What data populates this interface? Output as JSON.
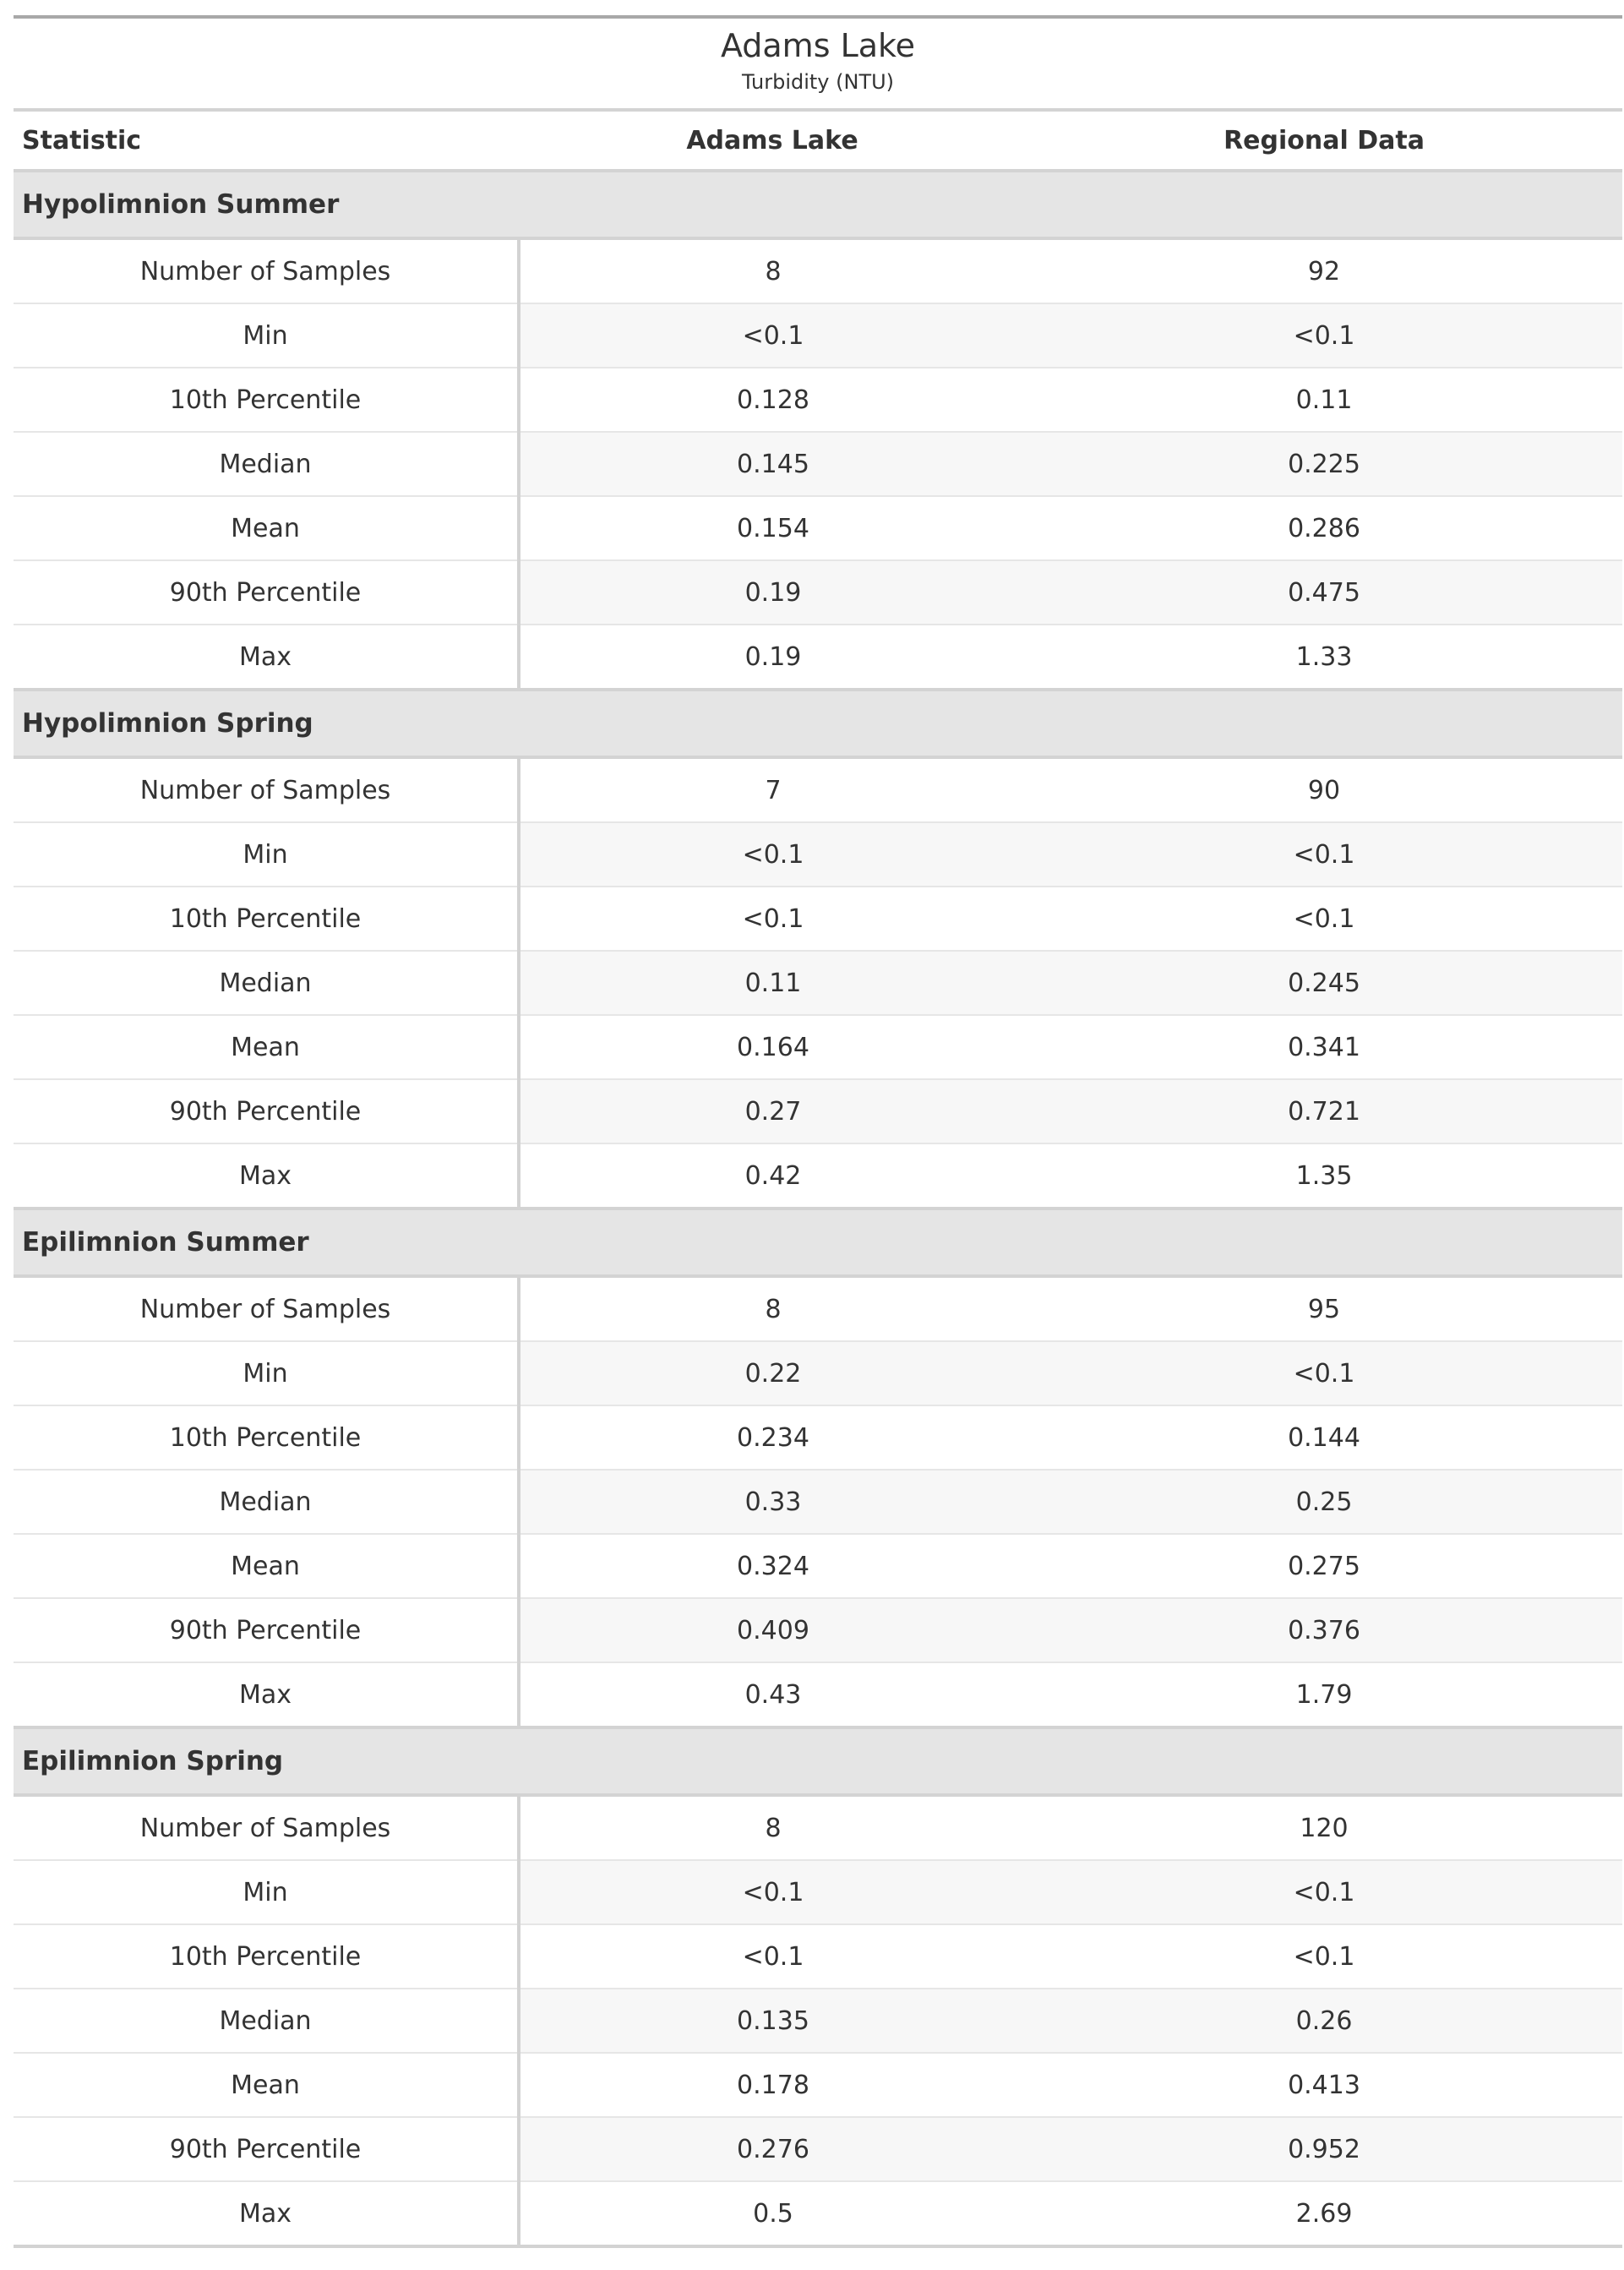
{
  "table": {
    "title": "Adams Lake",
    "subtitle": "Turbidity (NTU)",
    "columns": [
      "Statistic",
      "Adams Lake",
      "Regional Data"
    ],
    "groups": [
      {
        "name": "Hypolimnion Summer",
        "rows": [
          {
            "stat": "Number of Samples",
            "lake": "8",
            "regional": "92"
          },
          {
            "stat": "Min",
            "lake": "<0.1",
            "regional": "<0.1"
          },
          {
            "stat": "10th Percentile",
            "lake": "0.128",
            "regional": "0.11"
          },
          {
            "stat": "Median",
            "lake": "0.145",
            "regional": "0.225"
          },
          {
            "stat": "Mean",
            "lake": "0.154",
            "regional": "0.286"
          },
          {
            "stat": "90th Percentile",
            "lake": "0.19",
            "regional": "0.475"
          },
          {
            "stat": "Max",
            "lake": "0.19",
            "regional": "1.33"
          }
        ]
      },
      {
        "name": "Hypolimnion Spring",
        "rows": [
          {
            "stat": "Number of Samples",
            "lake": "7",
            "regional": "90"
          },
          {
            "stat": "Min",
            "lake": "<0.1",
            "regional": "<0.1"
          },
          {
            "stat": "10th Percentile",
            "lake": "<0.1",
            "regional": "<0.1"
          },
          {
            "stat": "Median",
            "lake": "0.11",
            "regional": "0.245"
          },
          {
            "stat": "Mean",
            "lake": "0.164",
            "regional": "0.341"
          },
          {
            "stat": "90th Percentile",
            "lake": "0.27",
            "regional": "0.721"
          },
          {
            "stat": "Max",
            "lake": "0.42",
            "regional": "1.35"
          }
        ]
      },
      {
        "name": "Epilimnion Summer",
        "rows": [
          {
            "stat": "Number of Samples",
            "lake": "8",
            "regional": "95"
          },
          {
            "stat": "Min",
            "lake": "0.22",
            "regional": "<0.1"
          },
          {
            "stat": "10th Percentile",
            "lake": "0.234",
            "regional": "0.144"
          },
          {
            "stat": "Median",
            "lake": "0.33",
            "regional": "0.25"
          },
          {
            "stat": "Mean",
            "lake": "0.324",
            "regional": "0.275"
          },
          {
            "stat": "90th Percentile",
            "lake": "0.409",
            "regional": "0.376"
          },
          {
            "stat": "Max",
            "lake": "0.43",
            "regional": "1.79"
          }
        ]
      },
      {
        "name": "Epilimnion Spring",
        "rows": [
          {
            "stat": "Number of Samples",
            "lake": "8",
            "regional": "120"
          },
          {
            "stat": "Min",
            "lake": "<0.1",
            "regional": "<0.1"
          },
          {
            "stat": "10th Percentile",
            "lake": "<0.1",
            "regional": "<0.1"
          },
          {
            "stat": "Median",
            "lake": "0.135",
            "regional": "0.26"
          },
          {
            "stat": "Mean",
            "lake": "0.178",
            "regional": "0.413"
          },
          {
            "stat": "90th Percentile",
            "lake": "0.276",
            "regional": "0.952"
          },
          {
            "stat": "Max",
            "lake": "0.5",
            "regional": "2.69"
          }
        ]
      }
    ]
  }
}
